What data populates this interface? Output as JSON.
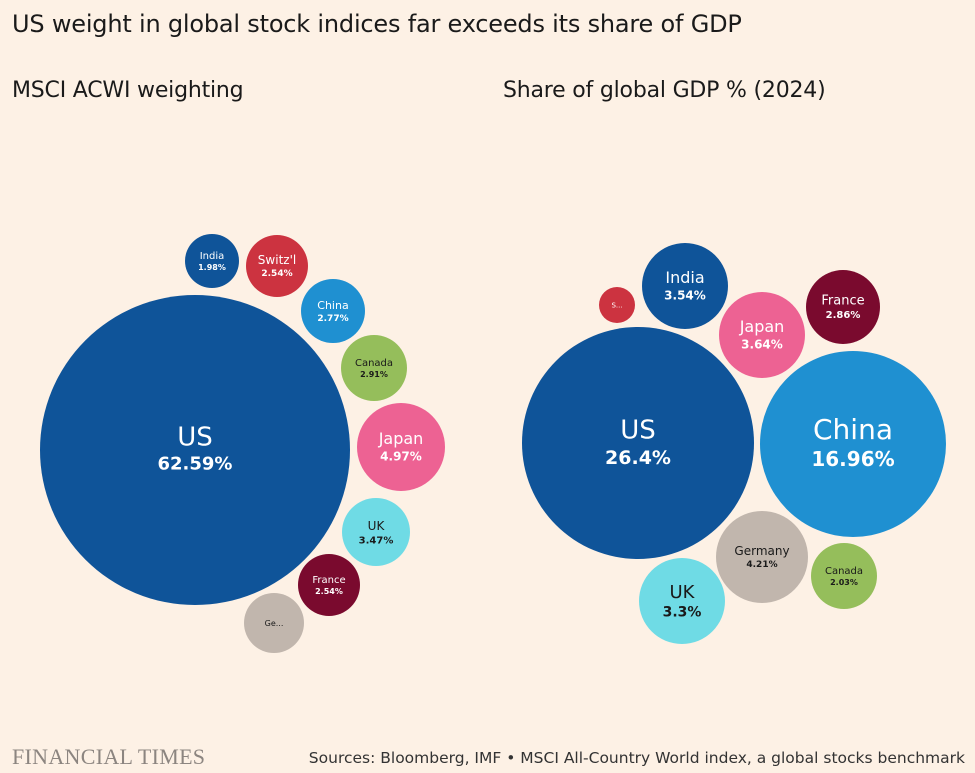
{
  "title": "US weight in global stock indices far exceeds its share of GDP",
  "brand": "FINANCIAL TIMES",
  "source": "Sources: Bloomberg, IMF • MSCI All-Country World index, a global stocks benchmark",
  "chart_data": [
    {
      "type": "bubble",
      "title": "MSCI ACWI weighting",
      "bubbles": [
        {
          "label": "US",
          "value_label": "62.59%",
          "value": 62.59,
          "color": "#0f5499",
          "text_color": "#ffffff"
        },
        {
          "label": "India",
          "value_label": "1.98%",
          "value": 1.98,
          "color": "#0f5499",
          "text_color": "#ffffff"
        },
        {
          "label": "Switz'l",
          "value_label": "2.54%",
          "value": 2.54,
          "color": "#cc3340",
          "text_color": "#ffffff"
        },
        {
          "label": "China",
          "value_label": "2.77%",
          "value": 2.77,
          "color": "#1f90d1",
          "text_color": "#ffffff"
        },
        {
          "label": "Canada",
          "value_label": "2.91%",
          "value": 2.91,
          "color": "#95be5b",
          "text_color": "#1a1a1a"
        },
        {
          "label": "Japan",
          "value_label": "4.97%",
          "value": 4.97,
          "color": "#ed6293",
          "text_color": "#ffffff"
        },
        {
          "label": "UK",
          "value_label": "3.47%",
          "value": 3.47,
          "color": "#6fdbe5",
          "text_color": "#1a1a1a"
        },
        {
          "label": "France",
          "value_label": "2.54%",
          "value": 2.54,
          "color": "#7a0a2e",
          "text_color": "#ffffff"
        },
        {
          "label": "Ge...",
          "value_label": "",
          "value": null,
          "color": "#c1b6ad",
          "text_color": "#1a1a1a"
        }
      ]
    },
    {
      "type": "bubble",
      "title": "Share of global GDP % (2024)",
      "bubbles": [
        {
          "label": "US",
          "value_label": "26.4%",
          "value": 26.4,
          "color": "#0f5499",
          "text_color": "#ffffff"
        },
        {
          "label": "China",
          "value_label": "16.96%",
          "value": 16.96,
          "color": "#1f90d1",
          "text_color": "#ffffff"
        },
        {
          "label": "India",
          "value_label": "3.54%",
          "value": 3.54,
          "color": "#0f5499",
          "text_color": "#ffffff"
        },
        {
          "label": "Japan",
          "value_label": "3.64%",
          "value": 3.64,
          "color": "#ed6293",
          "text_color": "#ffffff"
        },
        {
          "label": "France",
          "value_label": "2.86%",
          "value": 2.86,
          "color": "#7a0a2e",
          "text_color": "#ffffff"
        },
        {
          "label": "S...",
          "value_label": "",
          "value": null,
          "color": "#cc3340",
          "text_color": "#ffffff"
        },
        {
          "label": "Germany",
          "value_label": "4.21%",
          "value": 4.21,
          "color": "#c1b6ad",
          "text_color": "#1a1a1a"
        },
        {
          "label": "Canada",
          "value_label": "2.03%",
          "value": 2.03,
          "color": "#95be5b",
          "text_color": "#1a1a1a"
        },
        {
          "label": "UK",
          "value_label": "3.3%",
          "value": 3.3,
          "color": "#6fdbe5",
          "text_color": "#1a1a1a"
        }
      ]
    }
  ]
}
